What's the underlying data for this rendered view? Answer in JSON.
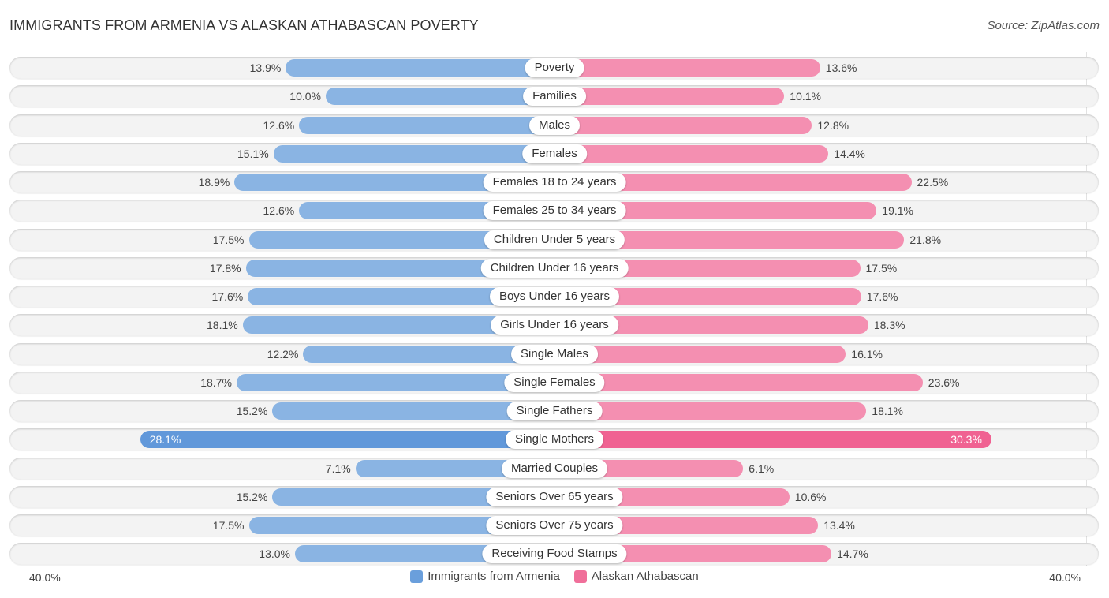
{
  "header": {
    "title": "IMMIGRANTS FROM ARMENIA VS ALASKAN ATHABASCAN POVERTY",
    "source": "Source: ZipAtlas.com"
  },
  "colors": {
    "left": "#8ab4e3",
    "left_highlight": "#6198da",
    "right": "#f48fb1",
    "right_highlight": "#f06292",
    "legend_left": "#6a9fdc",
    "legend_right": "#f06f9a"
  },
  "chart_data": {
    "type": "bar",
    "orientation": "horizontal-diverging",
    "title": "IMMIGRANTS FROM ARMENIA VS ALASKAN ATHABASCAN POVERTY",
    "categories": [
      "Poverty",
      "Families",
      "Males",
      "Females",
      "Females 18 to 24 years",
      "Females 25 to 34 years",
      "Children Under 5 years",
      "Children Under 16 years",
      "Boys Under 16 years",
      "Girls Under 16 years",
      "Single Males",
      "Single Females",
      "Single Fathers",
      "Single Mothers",
      "Married Couples",
      "Seniors Over 65 years",
      "Seniors Over 75 years",
      "Receiving Food Stamps"
    ],
    "series": [
      {
        "name": "Immigrants from Armenia",
        "side": "left",
        "values": [
          13.9,
          10.0,
          12.6,
          15.1,
          18.9,
          12.6,
          17.5,
          17.8,
          17.6,
          18.1,
          12.2,
          18.7,
          15.2,
          28.1,
          7.1,
          15.2,
          17.5,
          13.0
        ],
        "labels": [
          "13.9%",
          "10.0%",
          "12.6%",
          "15.1%",
          "18.9%",
          "12.6%",
          "17.5%",
          "17.8%",
          "17.6%",
          "18.1%",
          "12.2%",
          "18.7%",
          "15.2%",
          "28.1%",
          "7.1%",
          "15.2%",
          "17.5%",
          "13.0%"
        ]
      },
      {
        "name": "Alaskan Athabascan",
        "side": "right",
        "values": [
          13.6,
          10.1,
          12.8,
          14.4,
          22.5,
          19.1,
          21.8,
          17.5,
          17.6,
          18.3,
          16.1,
          23.6,
          18.1,
          30.3,
          6.1,
          10.6,
          13.4,
          14.7
        ],
        "labels": [
          "13.6%",
          "10.1%",
          "12.8%",
          "14.4%",
          "22.5%",
          "19.1%",
          "21.8%",
          "17.5%",
          "17.6%",
          "18.3%",
          "16.1%",
          "23.6%",
          "18.1%",
          "30.3%",
          "6.1%",
          "10.6%",
          "13.4%",
          "14.7%"
        ]
      }
    ],
    "highlighted_category": "Single Mothers",
    "axis": {
      "min_label": "40.0%",
      "max_label": "40.0%",
      "range": [
        0,
        40
      ]
    },
    "legend": {
      "position": "bottom-center",
      "entries": [
        "Immigrants from Armenia",
        "Alaskan Athabascan"
      ]
    },
    "grid": false
  }
}
